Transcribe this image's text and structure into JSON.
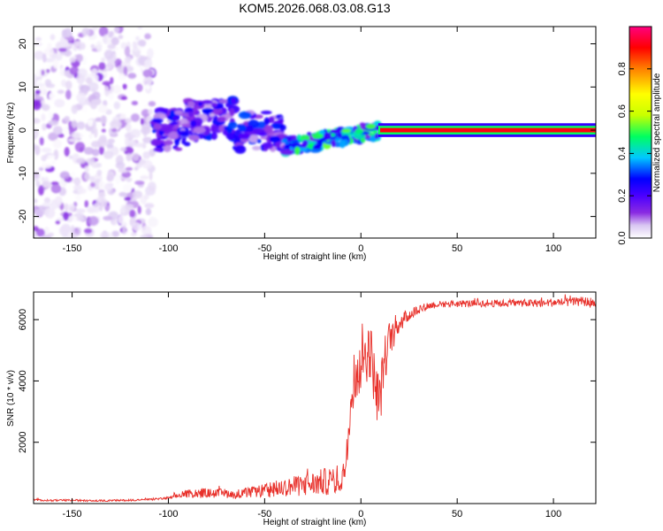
{
  "title": "KOM5.2026.068.03.08.G13",
  "chart_data": [
    {
      "type": "heatmap",
      "name": "spectrogram",
      "xlabel": "Height of straight line (km)",
      "ylabel": "Frequency (Hz)",
      "xlim": [
        -170,
        122
      ],
      "ylim": [
        -25,
        24
      ],
      "xticks": [
        -150,
        -100,
        -50,
        0,
        50,
        100
      ],
      "yticks": [
        -20,
        -10,
        0,
        10,
        20
      ],
      "colorbar": {
        "label": "Normalized spectral amplitude",
        "range": [
          0,
          1
        ],
        "ticks": [
          0.0,
          0.2,
          0.4,
          0.6,
          0.8
        ],
        "colors": [
          "#ffffff",
          "#d9c6f2",
          "#8a2be2",
          "#4b00ff",
          "#0000ff",
          "#00c8ff",
          "#00ff60",
          "#c8ff00",
          "#ffff00",
          "#ff8000",
          "#ff0000",
          "#ff0080"
        ]
      },
      "regions": [
        {
          "x": [
            -170,
            -108
          ],
          "freq": [
            -25,
            24
          ],
          "amplitude": [
            0.0,
            0.2
          ],
          "description": "broadband noise"
        },
        {
          "x": [
            -108,
            -40
          ],
          "freq": [
            -6,
            7
          ],
          "amplitude": [
            0.1,
            0.4
          ]
        },
        {
          "x": [
            -40,
            10
          ],
          "freq": [
            -6,
            1
          ],
          "amplitude": [
            0.2,
            0.6
          ]
        },
        {
          "x": [
            10,
            122
          ],
          "freq": [
            -0.5,
            0.5
          ],
          "amplitude": [
            0.6,
            1.0
          ],
          "description": "steady tone at 0 Hz"
        }
      ]
    },
    {
      "type": "line",
      "name": "snr",
      "xlabel": "Height of straight line (km)",
      "ylabel": "SNR (10 * v/v)",
      "xlim": [
        -170,
        122
      ],
      "ylim": [
        0,
        6900
      ],
      "xticks": [
        -150,
        -100,
        -50,
        0,
        50,
        100
      ],
      "yticks": [
        2000,
        4000,
        6000
      ],
      "color": "#e8302a",
      "x": [
        -170,
        -160,
        -150,
        -140,
        -130,
        -120,
        -110,
        -100,
        -95,
        -90,
        -85,
        -80,
        -75,
        -70,
        -65,
        -60,
        -55,
        -50,
        -45,
        -40,
        -35,
        -30,
        -25,
        -20,
        -15,
        -10,
        -8,
        -5,
        -2,
        0,
        2,
        5,
        8,
        10,
        12,
        15,
        18,
        20,
        25,
        30,
        35,
        40,
        45,
        50,
        60,
        70,
        80,
        90,
        100,
        110,
        115,
        120,
        122
      ],
      "y": [
        120,
        100,
        110,
        90,
        100,
        110,
        130,
        180,
        250,
        320,
        350,
        340,
        330,
        330,
        320,
        340,
        380,
        420,
        480,
        520,
        560,
        600,
        640,
        700,
        740,
        800,
        1300,
        3800,
        4400,
        4600,
        4900,
        5000,
        3600,
        3400,
        4600,
        5400,
        5700,
        5900,
        6150,
        6350,
        6450,
        6500,
        6520,
        6520,
        6530,
        6530,
        6540,
        6540,
        6560,
        6570,
        6600,
        6550,
        6450
      ],
      "jitter": [
        30,
        30,
        30,
        30,
        30,
        30,
        30,
        40,
        90,
        130,
        150,
        150,
        150,
        150,
        150,
        160,
        190,
        220,
        260,
        290,
        330,
        360,
        400,
        440,
        480,
        520,
        600,
        900,
        1000,
        1000,
        1000,
        950,
        900,
        900,
        800,
        600,
        450,
        320,
        220,
        160,
        130,
        120,
        120,
        120,
        120,
        120,
        120,
        130,
        140,
        150,
        150,
        180,
        150
      ]
    }
  ]
}
